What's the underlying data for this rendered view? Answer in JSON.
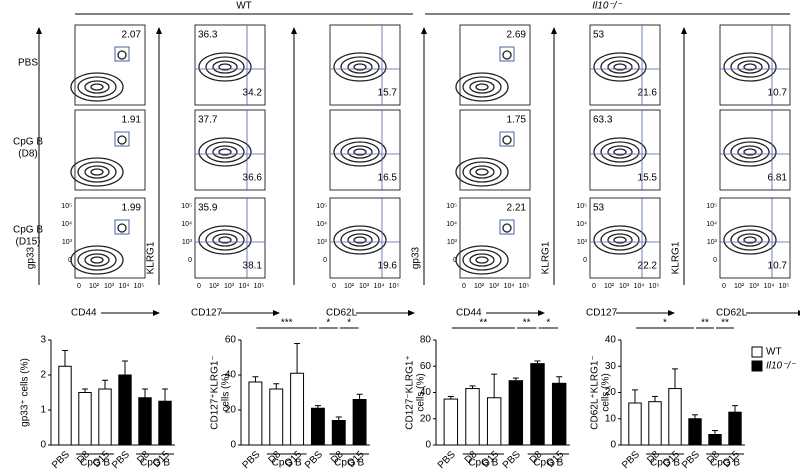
{
  "header": {
    "wt": "WT",
    "il10": "Il10⁻/⁻"
  },
  "rows": [
    [
      "PBS"
    ],
    [
      "CpG B",
      "(D8)"
    ],
    [
      "CpG B",
      "(D15)"
    ]
  ],
  "columns": [
    {
      "y_label": "gp33",
      "x_label": "CD44"
    },
    {
      "y_label": "KLRG1",
      "x_label": "CD127"
    },
    {
      "x_label": "CD62L"
    },
    {
      "y_label": "gp33",
      "x_label": "CD44"
    },
    {
      "y_label": "KLRG1",
      "x_label": "CD127"
    },
    {
      "y_label": "KLRG1",
      "x_label": "CD62L"
    }
  ],
  "flow_ticks": {
    "y": [
      "10⁵",
      "10⁴",
      "10³",
      "0"
    ],
    "x": [
      "0",
      "10²",
      "10³",
      "10⁴",
      "10⁵"
    ]
  },
  "flow_values": [
    [
      [
        "2.07"
      ],
      [
        "36.3",
        "34.2"
      ],
      [
        "15.7"
      ],
      [
        "2.69"
      ],
      [
        "53",
        "21.6"
      ],
      [
        "10.7"
      ]
    ],
    [
      [
        "1.91"
      ],
      [
        "37.7",
        "36.6"
      ],
      [
        "16.5"
      ],
      [
        "1.75"
      ],
      [
        "63.3",
        "15.5"
      ],
      [
        "6.81"
      ]
    ],
    [
      [
        "1.99"
      ],
      [
        "35.9",
        "38.1"
      ],
      [
        "19.6"
      ],
      [
        "2.21"
      ],
      [
        "53",
        "22.2"
      ],
      [
        "10.7"
      ]
    ]
  ],
  "chart_data": [
    {
      "type": "bar",
      "y_label": [
        "gp33⁺ cells (%)"
      ],
      "categories": [
        "PBS",
        "D8",
        "D15"
      ],
      "group_label": "CpG B",
      "series": [
        {
          "name": "WT",
          "color": "#ffffff",
          "values": [
            2.25,
            1.5,
            1.6
          ],
          "errors": [
            0.45,
            0.1,
            0.25
          ]
        },
        {
          "name": "Il10⁻/⁻",
          "color": "#000000",
          "values": [
            2.0,
            1.35,
            1.25
          ],
          "errors": [
            0.4,
            0.25,
            0.35
          ]
        }
      ],
      "ylim": [
        0,
        3
      ],
      "yticks": [
        0,
        1,
        2,
        3
      ],
      "significance": []
    },
    {
      "type": "bar",
      "y_label": [
        "CD127⁺KLRG1⁻",
        "cells (%)"
      ],
      "categories": [
        "PBS",
        "D8",
        "D15"
      ],
      "group_label": "CpG B",
      "series": [
        {
          "name": "WT",
          "color": "#ffffff",
          "values": [
            36,
            32,
            41
          ],
          "errors": [
            3,
            3,
            17
          ]
        },
        {
          "name": "Il10⁻/⁻",
          "color": "#000000",
          "values": [
            21,
            14,
            26
          ],
          "errors": [
            1.5,
            2,
            3
          ]
        }
      ],
      "ylim": [
        0,
        60
      ],
      "yticks": [
        0,
        20,
        40,
        60
      ],
      "significance": [
        "***",
        "*",
        "*"
      ]
    },
    {
      "type": "bar",
      "y_label": [
        "CD127⁻KLRG1⁺",
        "cells (%)"
      ],
      "categories": [
        "PBS",
        "D8",
        "D15"
      ],
      "group_label": "CpG B",
      "series": [
        {
          "name": "WT",
          "color": "#ffffff",
          "values": [
            35,
            43,
            36
          ],
          "errors": [
            2,
            2,
            18
          ]
        },
        {
          "name": "Il10⁻/⁻",
          "color": "#000000",
          "values": [
            49,
            62,
            47
          ],
          "errors": [
            2,
            2,
            5
          ]
        }
      ],
      "ylim": [
        0,
        80
      ],
      "yticks": [
        0,
        20,
        40,
        60,
        80
      ],
      "significance": [
        "**",
        "**",
        "*"
      ]
    },
    {
      "type": "bar",
      "y_label": [
        "CD62L⁺KLRG1⁻",
        "cells (%)"
      ],
      "categories": [
        "PBS",
        "D8",
        "D15"
      ],
      "group_label": "CpG B",
      "series": [
        {
          "name": "WT",
          "color": "#ffffff",
          "values": [
            16,
            16.5,
            21.5
          ],
          "errors": [
            5,
            2,
            7.5
          ]
        },
        {
          "name": "Il10⁻/⁻",
          "color": "#000000",
          "values": [
            10,
            4,
            12.5
          ],
          "errors": [
            1.5,
            1.5,
            2.5
          ]
        }
      ],
      "ylim": [
        0,
        40
      ],
      "yticks": [
        0,
        10,
        20,
        30,
        40
      ],
      "significance": [
        "*",
        "**",
        "**"
      ],
      "legend": true
    }
  ]
}
